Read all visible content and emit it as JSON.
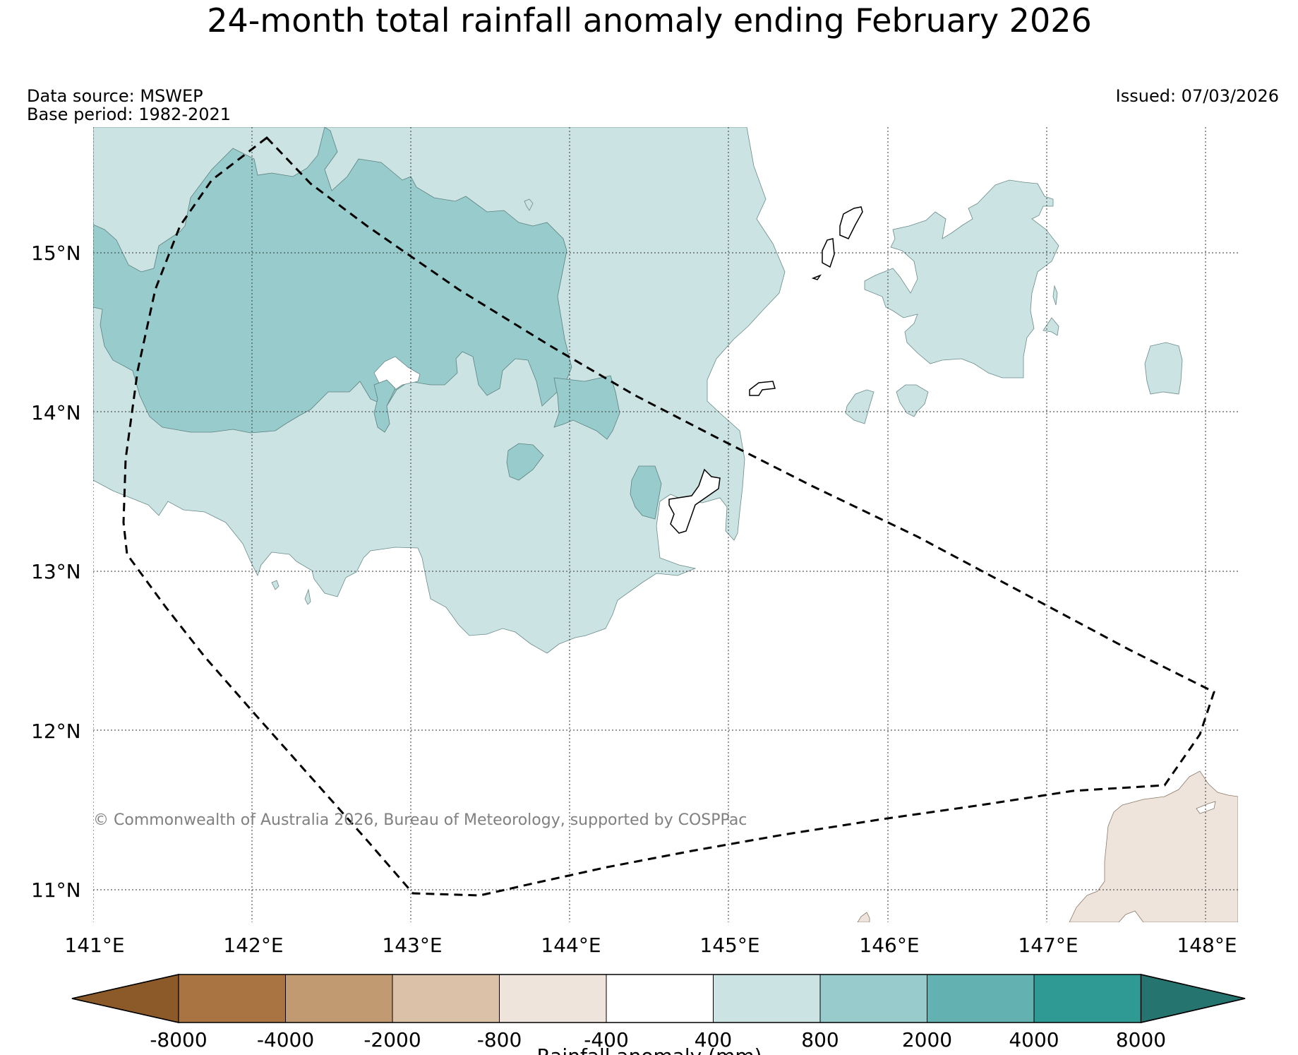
{
  "title": "24-month total rainfall anomaly ending February 2026",
  "data_source": "Data source: MSWEP",
  "base_period": "Base period: 1982-2021",
  "issued": "Issued: 07/03/2026",
  "copyright": "© Commonwealth of Australia 2026, Bureau of Meteorology, supported by COSPPac",
  "map": {
    "lon_labels": [
      "141°E",
      "142°E",
      "143°E",
      "144°E",
      "145°E",
      "146°E",
      "147°E",
      "148°E"
    ],
    "lat_labels": [
      "15°N",
      "14°N",
      "13°N",
      "12°N",
      "11°N"
    ]
  },
  "colorbar": {
    "label": "Rainfall anomaly (mm)",
    "ticks": [
      "-8000",
      "-4000",
      "-2000",
      "-800",
      "-400",
      "400",
      "800",
      "2000",
      "4000",
      "8000"
    ],
    "colors": [
      "#8c5a28",
      "#a97441",
      "#c29a71",
      "#dbc1a8",
      "#efe4db",
      "#ffffff",
      "#cbe4e3",
      "#98cbcb",
      "#64b1b1",
      "#2f9994",
      "#267470"
    ]
  }
}
